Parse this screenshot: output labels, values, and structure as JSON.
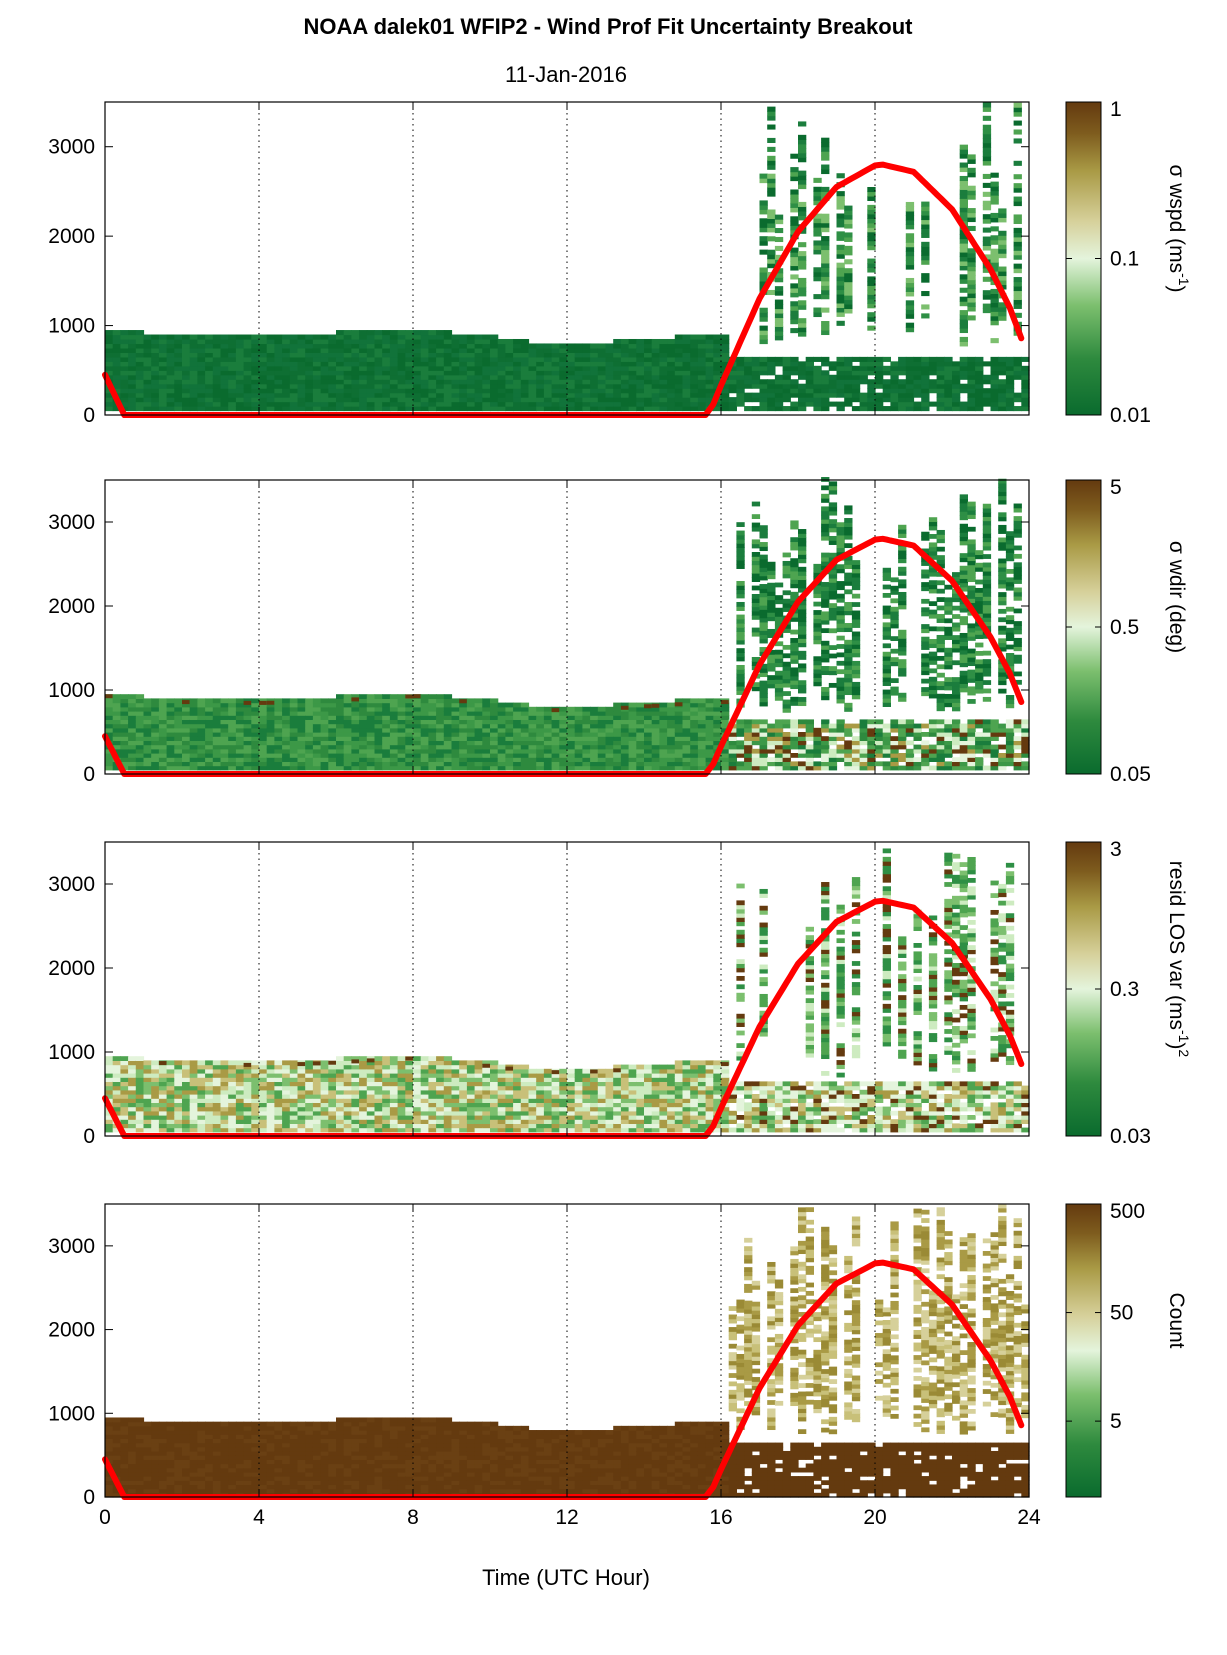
{
  "chart_data": {
    "type": "heatmap",
    "title": "NOAA dalek01 WFIP2 - Wind Prof Fit Uncertainty Breakout",
    "subtitle": "11-Jan-2016",
    "xlabel": "Time (UTC Hour)",
    "xlim": [
      0,
      24
    ],
    "xticks": [
      0,
      4,
      8,
      12,
      16,
      20,
      24
    ],
    "ylim": [
      0,
      3500
    ],
    "yticks": [
      0,
      1000,
      2000,
      3000
    ],
    "grid": "dotted vertical at every 4 h",
    "colors": {
      "green_dark": "#0a6b2e",
      "green_mid": "#4fa64a",
      "green_light": "#cdebc0",
      "white": "#f3f8ee",
      "olive_light": "#c8c079",
      "olive": "#9a8a35",
      "brown_dark": "#643a0f",
      "curve": "#ff0000"
    },
    "panels": [
      {
        "name": "sigma-wspd",
        "colorbar_label_main": "σ wspd (ms",
        "colorbar_label_sup": "-1",
        "colorbar_label_end": ")",
        "colorbar_ticks": [
          "1",
          "0.1",
          "0.01"
        ],
        "colorbar_scale": "log",
        "colorbar_range": [
          0.01,
          1
        ]
      },
      {
        "name": "sigma-wdir",
        "colorbar_label_main": "σ wdir (deg)",
        "colorbar_label_sup": "",
        "colorbar_label_end": "",
        "colorbar_ticks": [
          "5",
          "0.5",
          "0.05"
        ],
        "colorbar_scale": "log",
        "colorbar_range": [
          0.05,
          5
        ]
      },
      {
        "name": "resid-los-var",
        "colorbar_label_main": "resid LOS var (ms",
        "colorbar_label_sup": "-1",
        "colorbar_label_end": ")",
        "colorbar_label_sup2": "2",
        "colorbar_ticks": [
          "3",
          "0.3",
          "0.03"
        ],
        "colorbar_scale": "log",
        "colorbar_range": [
          0.03,
          3
        ]
      },
      {
        "name": "count",
        "colorbar_label_main": "Count",
        "colorbar_label_sup": "",
        "colorbar_label_end": "",
        "colorbar_ticks": [
          "500",
          "50",
          "5"
        ],
        "colorbar_scale": "log",
        "colorbar_range": [
          1,
          500
        ]
      }
    ],
    "boundary_layer_top": {
      "x": [
        0,
        1,
        2,
        3,
        4,
        5,
        6,
        7,
        8,
        9,
        10,
        11,
        12,
        13,
        14,
        15,
        15.9
      ],
      "y": [
        950,
        900,
        880,
        870,
        870,
        880,
        900,
        930,
        950,
        900,
        850,
        790,
        780,
        800,
        830,
        860,
        880
      ]
    },
    "day_curve": {
      "x": [
        0,
        0.5,
        15.6,
        15.8,
        16,
        17,
        18,
        19,
        20,
        20.2,
        21,
        22,
        23,
        23.5,
        23.85
      ],
      "y": [
        450,
        0,
        0,
        120,
        330,
        1300,
        2050,
        2550,
        2790,
        2800,
        2720,
        2300,
        1630,
        1200,
        800
      ]
    }
  }
}
